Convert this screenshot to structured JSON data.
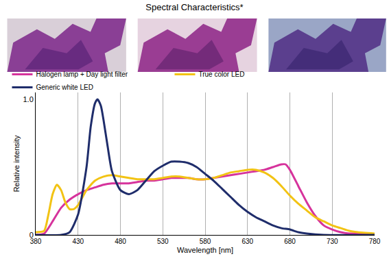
{
  "chart_data": {
    "type": "line",
    "title": "Spectral Characteristics*",
    "x_label": "Wavelength [nm]",
    "y_label": "Relative intensity",
    "xlim": [
      380,
      780
    ],
    "xticks": [
      380,
      430,
      480,
      530,
      580,
      630,
      680,
      730,
      780
    ],
    "ylim": [
      0,
      1.05
    ],
    "yticks": [
      0,
      {
        "value": 1,
        "label": "1.0"
      }
    ],
    "grid": "x",
    "legend": "top",
    "series": [
      {
        "name": "Halogen lamp + Day light filter",
        "color": "#d6339c",
        "x": [
          380,
          390,
          400,
          410,
          420,
          430,
          440,
          450,
          460,
          470,
          480,
          490,
          500,
          510,
          520,
          530,
          540,
          550,
          560,
          570,
          580,
          590,
          600,
          610,
          620,
          630,
          640,
          650,
          660,
          670,
          675,
          680,
          690,
          700,
          710,
          720,
          730,
          740,
          750,
          760,
          780
        ],
        "values": [
          0,
          0.01,
          0.1,
          0.2,
          0.26,
          0.3,
          0.33,
          0.35,
          0.37,
          0.38,
          0.38,
          0.38,
          0.39,
          0.4,
          0.4,
          0.41,
          0.42,
          0.42,
          0.42,
          0.41,
          0.41,
          0.42,
          0.43,
          0.44,
          0.45,
          0.46,
          0.47,
          0.48,
          0.5,
          0.52,
          0.52,
          0.48,
          0.36,
          0.24,
          0.14,
          0.07,
          0.04,
          0.02,
          0.01,
          0.01,
          0
        ]
      },
      {
        "name": "True color LED",
        "color": "#f2c314",
        "x": [
          380,
          390,
          395,
          400,
          405,
          410,
          415,
          420,
          425,
          430,
          440,
          450,
          460,
          470,
          480,
          490,
          500,
          510,
          520,
          530,
          540,
          550,
          560,
          570,
          580,
          590,
          600,
          610,
          620,
          630,
          640,
          650,
          660,
          670,
          680,
          690,
          700,
          710,
          720,
          730,
          740,
          750,
          760,
          780
        ],
        "values": [
          0.02,
          0.03,
          0.15,
          0.3,
          0.37,
          0.33,
          0.24,
          0.19,
          0.19,
          0.22,
          0.33,
          0.4,
          0.43,
          0.44,
          0.43,
          0.42,
          0.41,
          0.41,
          0.41,
          0.42,
          0.43,
          0.43,
          0.42,
          0.41,
          0.41,
          0.42,
          0.44,
          0.46,
          0.47,
          0.48,
          0.48,
          0.46,
          0.42,
          0.36,
          0.29,
          0.23,
          0.18,
          0.13,
          0.1,
          0.07,
          0.05,
          0.03,
          0.02,
          0.01
        ]
      },
      {
        "name": "Generic white LED",
        "color": "#1f2d6b",
        "x": [
          380,
          410,
          420,
          430,
          440,
          445,
          450,
          453,
          457,
          460,
          465,
          470,
          480,
          490,
          500,
          510,
          520,
          530,
          540,
          550,
          560,
          570,
          580,
          590,
          600,
          610,
          620,
          630,
          640,
          650,
          660,
          670,
          680,
          690,
          700,
          720,
          780
        ],
        "values": [
          0,
          0,
          0.02,
          0.15,
          0.5,
          0.8,
          0.97,
          1.0,
          0.95,
          0.85,
          0.65,
          0.47,
          0.33,
          0.3,
          0.33,
          0.4,
          0.47,
          0.51,
          0.54,
          0.54,
          0.53,
          0.5,
          0.45,
          0.4,
          0.34,
          0.28,
          0.22,
          0.17,
          0.13,
          0.1,
          0.07,
          0.05,
          0.04,
          0.02,
          0.01,
          0,
          0
        ]
      }
    ]
  }
}
